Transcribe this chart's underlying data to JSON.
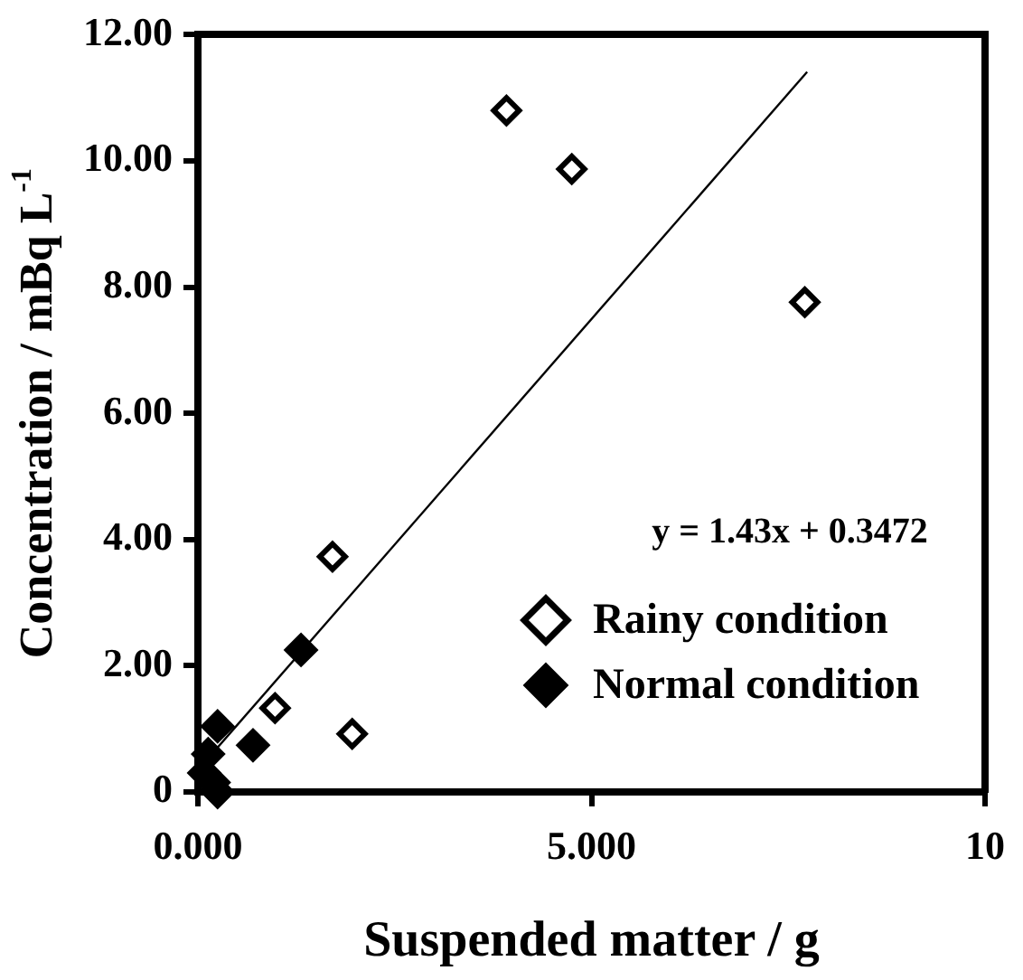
{
  "chart_data": {
    "type": "scatter",
    "xlabel": "Suspended matter / g",
    "ylabel": "Concentration / mBq L$^{-1}$",
    "xlim": [
      0,
      10
    ],
    "xticks": [
      {
        "value": 0,
        "label": "0.000"
      },
      {
        "value": 5,
        "label": "5.000"
      },
      10
    ],
    "ylim": [
      0,
      12
    ],
    "yticks": [
      0,
      {
        "value": 2,
        "label": "2.00"
      },
      {
        "value": 4,
        "label": "4.00"
      },
      {
        "value": 6,
        "label": "6.00"
      },
      {
        "value": 8,
        "label": "8.00"
      },
      {
        "value": 10,
        "label": "10.00"
      },
      {
        "value": 12,
        "label": "12.00"
      }
    ],
    "grid": false,
    "legend": "bottom right",
    "marker": "diamond",
    "annotations": [
      "y = 1.43x + 0.3472"
    ],
    "series": [
      {
        "name": "Rainy condition",
        "color": "#000000",
        "x": [
          3.92,
          4.75,
          7.71,
          1.71,
          0.98,
          1.96
        ],
        "values": [
          10.8,
          9.87,
          7.76,
          3.73,
          1.33,
          0.92
        ]
      },
      {
        "name": "Normal condition",
        "color": "#000000",
        "x": [
          1.31,
          0.7,
          0.25,
          0.13,
          0.08,
          0.25,
          0.2
        ],
        "values": [
          2.25,
          0.74,
          1.04,
          0.6,
          0.3,
          0.0,
          0.15
        ]
      },
      {
        "type": "line",
        "color": "#000000",
        "marker": "none",
        "x": [
          0.1,
          7.74
        ],
        "values": [
          0.49,
          11.41
        ]
      }
    ]
  }
}
